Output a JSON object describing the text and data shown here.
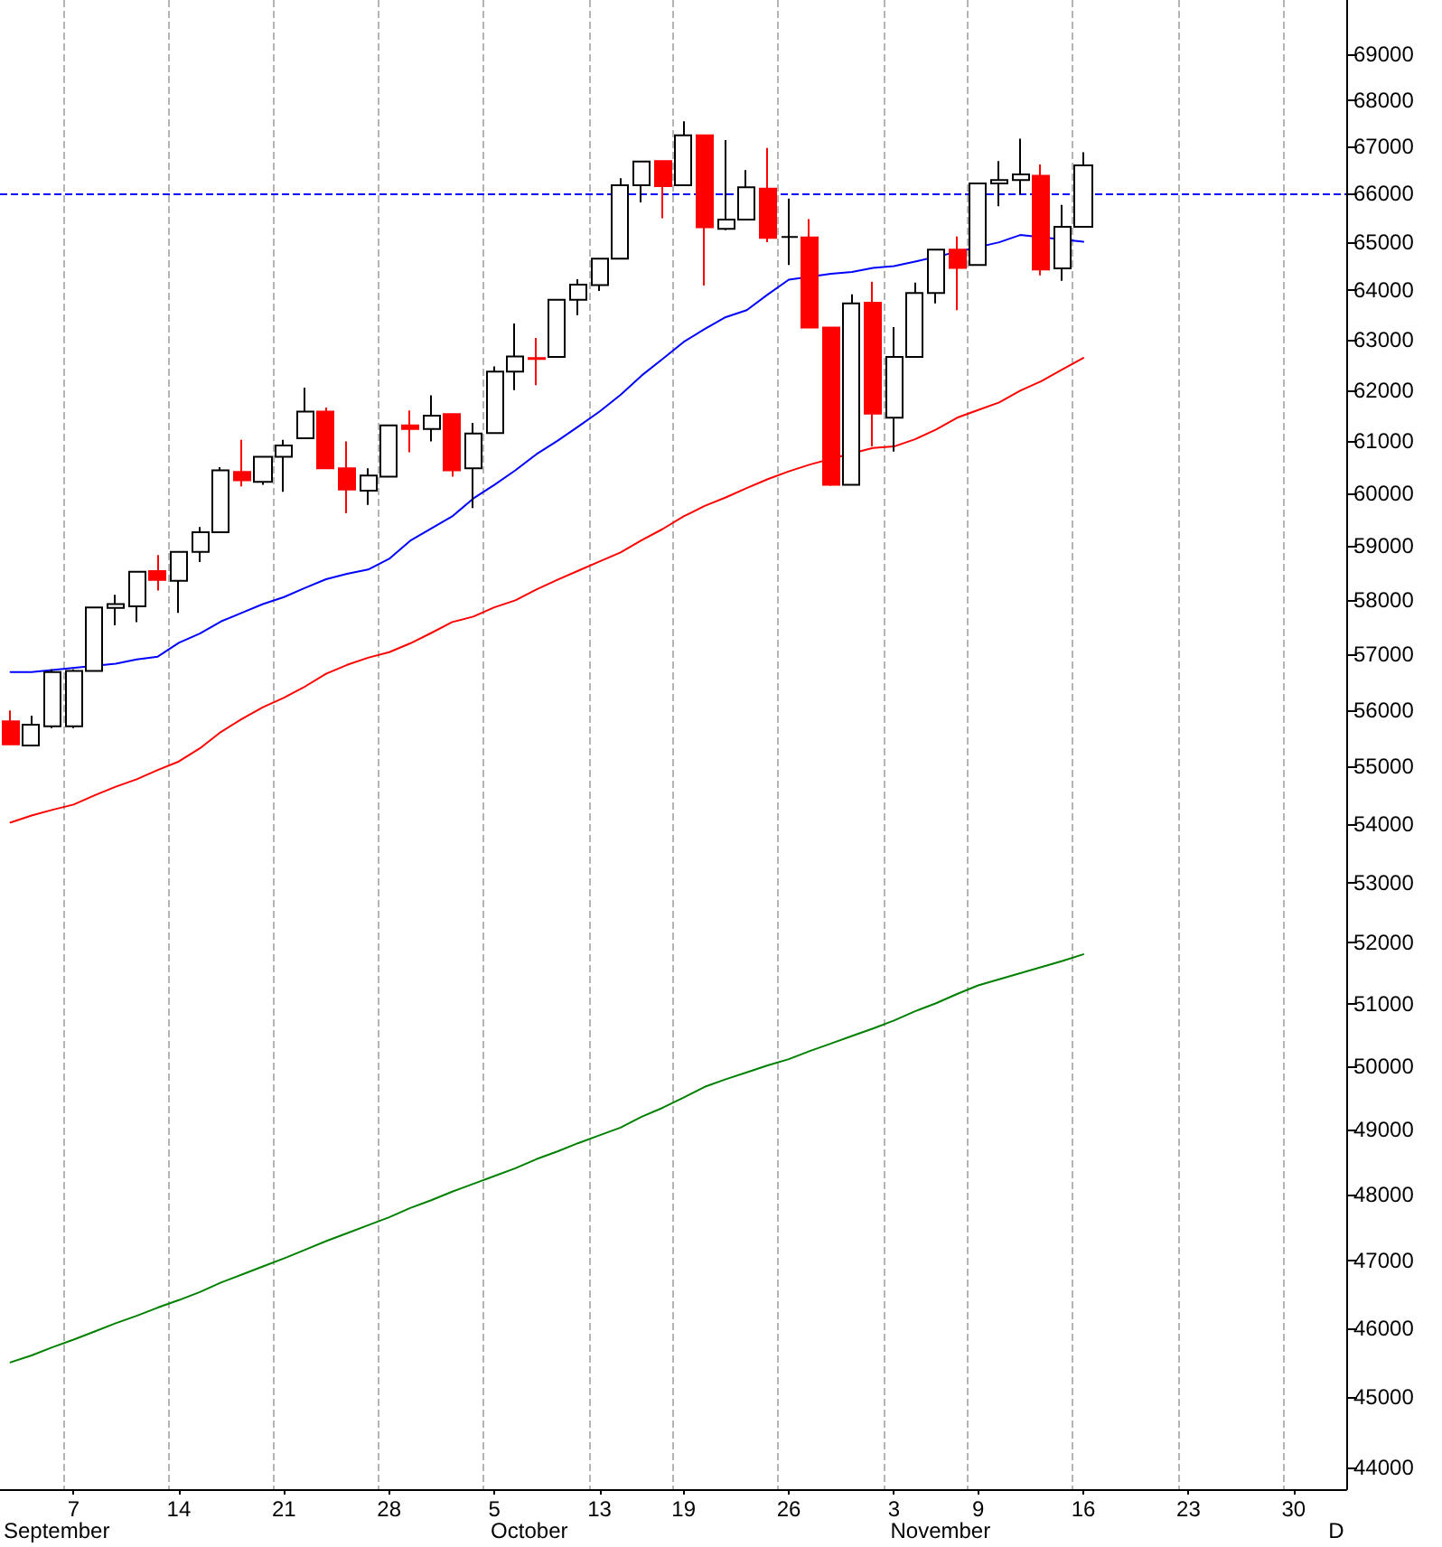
{
  "chart_data": {
    "type": "candlestick",
    "categories": [
      null,
      null,
      null,
      "7",
      null,
      null,
      null,
      null,
      "14",
      null,
      null,
      null,
      null,
      "21",
      null,
      null,
      null,
      null,
      "28",
      null,
      null,
      null,
      null,
      "5",
      null,
      null,
      null,
      null,
      "13",
      null,
      null,
      null,
      "19",
      null,
      null,
      null,
      null,
      "26",
      null,
      null,
      null,
      null,
      "3",
      null,
      null,
      null,
      "9",
      null,
      null,
      null,
      null,
      "16",
      null,
      null,
      null,
      null,
      "23",
      null,
      null,
      null,
      null,
      "30",
      null,
      null
    ],
    "series": [
      {
        "ohlc": [
          [
            55800,
            55990,
            55390,
            55390
          ],
          [
            55370,
            55900,
            55370,
            55740
          ],
          [
            55710,
            56730,
            55680,
            56680
          ],
          [
            55710,
            56730,
            55680,
            56700
          ],
          [
            56700,
            57860,
            56700,
            57860
          ],
          [
            57850,
            58090,
            57530,
            57920
          ],
          [
            57880,
            58520,
            57590,
            58520
          ],
          [
            58530,
            58830,
            58170,
            58370
          ],
          [
            58350,
            58890,
            57760,
            58890
          ],
          [
            58890,
            59360,
            58700,
            59260
          ],
          [
            59260,
            60500,
            59260,
            60440
          ],
          [
            60410,
            61030,
            60130,
            60250
          ],
          [
            60220,
            60700,
            60160,
            60700
          ],
          [
            60700,
            61030,
            60030,
            60920
          ],
          [
            61060,
            62050,
            61060,
            61580
          ],
          [
            61580,
            61660,
            60480,
            60480
          ],
          [
            60480,
            61000,
            59620,
            60070
          ],
          [
            60050,
            60480,
            59780,
            60340
          ],
          [
            60320,
            61310,
            60320,
            61310
          ],
          [
            61310,
            61600,
            60790,
            61240
          ],
          [
            61240,
            61900,
            61000,
            61500
          ],
          [
            61530,
            61530,
            60320,
            60440
          ],
          [
            60480,
            61360,
            59720,
            61150
          ],
          [
            61160,
            62470,
            61160,
            62370
          ],
          [
            62370,
            63330,
            62000,
            62670
          ],
          [
            62640,
            63040,
            62100,
            62620
          ],
          [
            62660,
            63810,
            62660,
            63810
          ],
          [
            63810,
            64230,
            63500,
            64120
          ],
          [
            64110,
            64650,
            63990,
            64650
          ],
          [
            64650,
            66330,
            64650,
            66180
          ],
          [
            66180,
            66680,
            65820,
            66680
          ],
          [
            66690,
            66690,
            65490,
            66160
          ],
          [
            66180,
            67540,
            66180,
            67240
          ],
          [
            67240,
            67240,
            64100,
            65300
          ],
          [
            65270,
            67140,
            65240,
            65460
          ],
          [
            65460,
            66500,
            65460,
            66140
          ],
          [
            66110,
            66970,
            64990,
            65080
          ],
          [
            65100,
            65900,
            64520,
            65100
          ],
          [
            65090,
            65470,
            63250,
            63250
          ],
          [
            63250,
            63250,
            60140,
            60160
          ],
          [
            60160,
            63920,
            60160,
            63740
          ],
          [
            63750,
            64180,
            60900,
            61540
          ],
          [
            61460,
            63260,
            60800,
            62660
          ],
          [
            62660,
            64160,
            62660,
            63950
          ],
          [
            63950,
            64840,
            63740,
            64840
          ],
          [
            64840,
            65110,
            63600,
            64460
          ],
          [
            64520,
            66220,
            64520,
            66220
          ],
          [
            66220,
            66690,
            65740,
            66290
          ],
          [
            66290,
            67170,
            65990,
            66410
          ],
          [
            66380,
            66620,
            64310,
            64430
          ],
          [
            64450,
            65770,
            64200,
            65310
          ],
          [
            65310,
            66880,
            65310,
            66600
          ],
          null,
          null,
          null,
          null,
          null,
          null,
          null,
          null,
          null,
          null,
          null,
          null
        ],
        "colors": [
          "#ff0000",
          "#ffffff",
          "#ffffff",
          "#ffffff",
          "#ffffff",
          "#ffffff",
          "#ffffff",
          "#ff0000",
          "#ffffff",
          "#ffffff",
          "#ffffff",
          "#ff0000",
          "#ffffff",
          "#ffffff",
          "#ffffff",
          "#ff0000",
          "#ff0000",
          "#ffffff",
          "#ffffff",
          "#ff0000",
          "#ffffff",
          "#ff0000",
          "#ffffff",
          "#ffffff",
          "#ffffff",
          "#ff0000",
          "#ffffff",
          "#ffffff",
          "#ffffff",
          "#ffffff",
          "#ffffff",
          "#ff0000",
          "#ffffff",
          "#ff0000",
          "#ffffff",
          "#ffffff",
          "#ff0000",
          "#000000",
          "#ff0000",
          "#ff0000",
          "#ffffff",
          "#ff0000",
          "#ffffff",
          "#ffffff",
          "#ffffff",
          "#ff0000",
          "#ffffff",
          "#ffffff",
          "#ffffff",
          "#ff0000",
          "#ffffff",
          "#ffffff",
          null,
          null,
          null,
          null,
          null,
          null,
          null,
          null,
          null,
          null,
          null,
          null
        ]
      },
      {
        "type": "line",
        "color": "#0000ff",
        "values": [
          56680,
          56680,
          null,
          null,
          null,
          56830,
          56910,
          56960,
          57210,
          57380,
          57600,
          57760,
          57920,
          58050,
          58220,
          58380,
          58480,
          58560,
          58760,
          59100,
          59330,
          59560,
          59900,
          60160,
          60440,
          60750,
          61010,
          61290,
          61580,
          61910,
          62290,
          62620,
          62960,
          63220,
          63460,
          63600,
          63920,
          64220,
          null,
          64340,
          64380,
          64460,
          64500,
          64590,
          null,
          null,
          null,
          64990,
          65140,
          null,
          null,
          65000,
          null,
          null,
          null,
          null,
          null,
          null,
          null,
          null,
          null,
          null,
          null,
          null
        ]
      },
      {
        "type": "line",
        "color": "#ff0000",
        "values": [
          54030,
          54150,
          54250,
          54340,
          54500,
          54650,
          54780,
          54940,
          55090,
          55320,
          55610,
          55840,
          56050,
          56220,
          56420,
          56650,
          56810,
          56940,
          57040,
          57200,
          57390,
          57590,
          57690,
          57860,
          57990,
          58190,
          58370,
          58540,
          58710,
          58880,
          59110,
          59320,
          59560,
          59760,
          59920,
          60100,
          60270,
          60420,
          60550,
          60660,
          null,
          60870,
          60900,
          61040,
          61230,
          61460,
          61610,
          61760,
          61990,
          62180,
          62410,
          62640,
          null,
          null,
          null,
          null,
          null,
          null,
          null,
          null,
          null,
          null,
          null,
          null
        ]
      },
      {
        "type": "line",
        "color": "#008000",
        "values": [
          45500,
          45600,
          45720,
          45830,
          45950,
          46070,
          46180,
          46300,
          46410,
          46530,
          46670,
          46790,
          46910,
          47030,
          47160,
          47290,
          47410,
          47530,
          47650,
          47790,
          47910,
          48040,
          48160,
          48280,
          48400,
          48540,
          48660,
          48790,
          48910,
          49030,
          49200,
          49340,
          49500,
          49670,
          49790,
          49900,
          50010,
          50110,
          50240,
          50360,
          50480,
          50600,
          50730,
          50880,
          51010,
          51160,
          51300,
          51400,
          51500,
          51600,
          51700,
          51810,
          null,
          null,
          null,
          null,
          null,
          null,
          null,
          null,
          null,
          null,
          null,
          null
        ]
      }
    ],
    "ylim": [
      43700,
      70200
    ],
    "yticks": [
      44000,
      45000,
      46000,
      47000,
      48000,
      49000,
      50000,
      51000,
      52000,
      53000,
      54000,
      55000,
      56000,
      57000,
      58000,
      59000,
      60000,
      61000,
      62000,
      63000,
      64000,
      65000,
      66000,
      67000,
      68000,
      69000
    ],
    "log": "y",
    "grid": "x",
    "marker": "none",
    "ref_lines": [
      {
        "axis": "y",
        "value": 66000,
        "color": "#0000ff",
        "line_style": "dashed"
      }
    ],
    "annotations": [
      "September",
      "October",
      "November",
      "D"
    ]
  }
}
